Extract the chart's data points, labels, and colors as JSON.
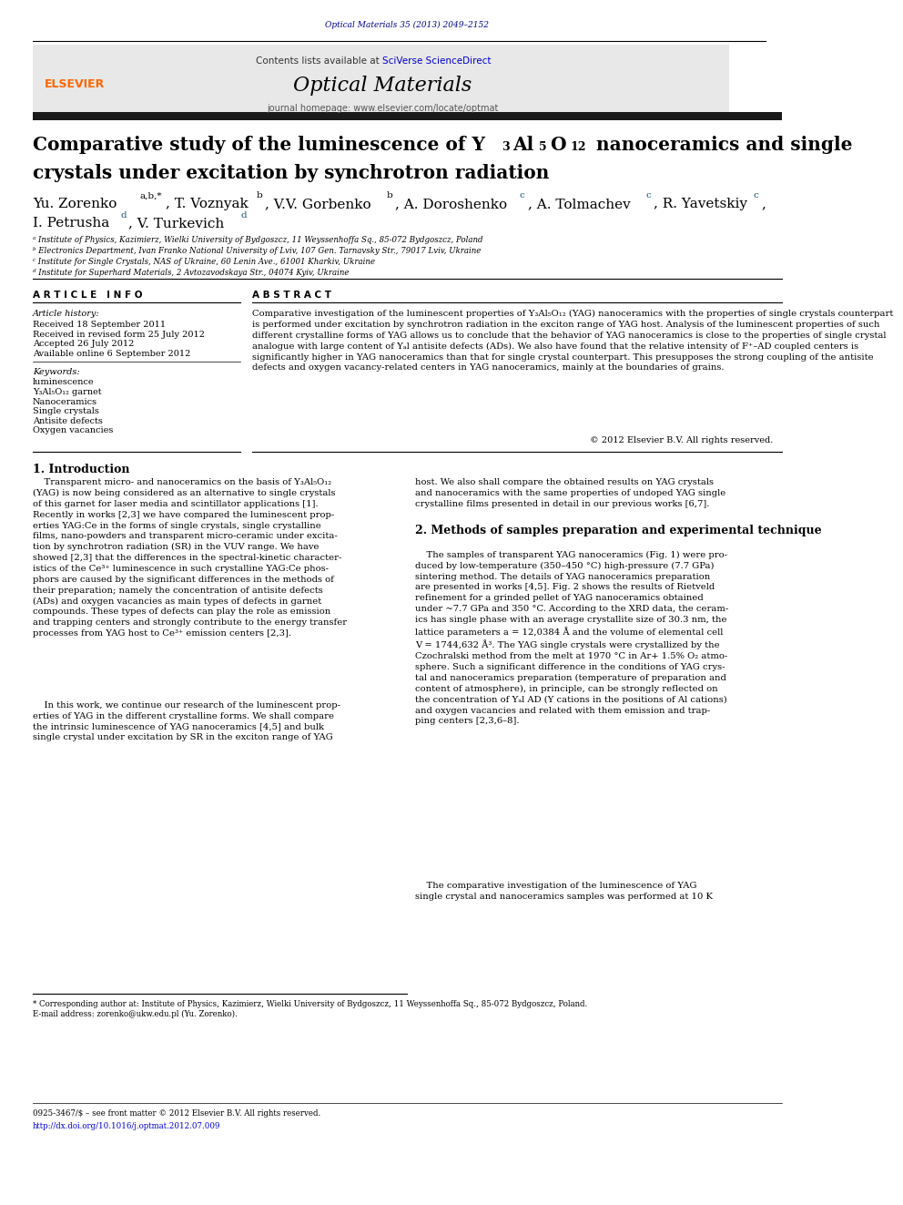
{
  "page_width": 9.92,
  "page_height": 13.23,
  "bg_color": "#ffffff",
  "journal_ref_text": "Optical Materials 35 (2013) 2049–2152",
  "journal_ref_color": "#00008B",
  "header_bg": "#e8e8e8",
  "header_contents_text": "Contents lists available at ",
  "header_sciverse_text": "SciVerse ScienceDirect",
  "header_sciverse_color": "#0000CD",
  "header_journal_name": "Optical Materials",
  "header_homepage_text": "journal homepage: www.elsevier.com/locate/optmat",
  "elsevier_color": "#FF6600",
  "thick_rule_color": "#1a1a1a",
  "title_line2": "crystals under excitation by synchrotron radiation",
  "affil_a": "ᵃ Institute of Physics, Kazimierz, Wielki University of Bydgoszcz, 11 Weyssenhoffa Sq., 85-072 Bydgoszcz, Poland",
  "affil_b": "ᵇ Electronics Department, Ivan Franko National University of Lviv, 107 Gen. Tarnavsky Str., 79017 Lviv, Ukraine",
  "affil_c": "ᶜ Institute for Single Crystals, NAS of Ukraine, 60 Lenin Ave., 61001 Kharkiv, Ukraine",
  "affil_d": "ᵈ Institute for Superhard Materials, 2 Avtozavodskaya Str., 04074 Kyiv, Ukraine",
  "article_info_header": "A R T I C L E   I N F O",
  "article_history_label": "Article history:",
  "received1": "Received 18 September 2011",
  "received2": "Received in revised form 25 July 2012",
  "accepted": "Accepted 26 July 2012",
  "available": "Available online 6 September 2012",
  "keywords_label": "Keywords:",
  "keyword1": "luminescence",
  "keyword2": "Y₃Al₅O₁₂ garnet",
  "keyword3": "Nanoceramics",
  "keyword4": "Single crystals",
  "keyword5": "Antisite defects",
  "keyword6": "Oxygen vacancies",
  "abstract_header": "A B S T R A C T",
  "abstract_text": "Comparative investigation of the luminescent properties of Y₃Al₅O₁₂ (YAG) nanoceramics with the properties of single crystals counterpart is performed under excitation by synchrotron radiation in the exciton range of YAG host. Analysis of the luminescent properties of such different crystalline forms of YAG allows us to conclude that the behavior of YAG nanoceramics is close to the properties of single crystal analogue with large content of Yₐl antisite defects (ADs). We also have found that the relative intensity of F⁺–AD coupled centers is significantly higher in YAG nanoceramics than that for single crystal counterpart. This presupposes the strong coupling of the antisite defects and oxygen vacancy-related centers in YAG nanoceramics, mainly at the boundaries of grains.",
  "copyright_text": "© 2012 Elsevier B.V. All rights reserved.",
  "section1_header": "1. Introduction",
  "section2_header": "2. Methods of samples preparation and experimental technique",
  "footnote1": "* Corresponding author at: Institute of Physics, Kazimierz, Wielki University of Bydgoszcz, 11 Weyssenhoffa Sq., 85-072 Bydgoszcz, Poland.",
  "footnote2": "E-mail address: zorenko@ukw.edu.pl (Yu. Zorenko).",
  "footnote3": "0925-3467/$ – see front matter © 2012 Elsevier B.V. All rights reserved.",
  "footnote4": "http://dx.doi.org/10.1016/j.optmat.2012.07.009",
  "footnote4_color": "#0000CD"
}
